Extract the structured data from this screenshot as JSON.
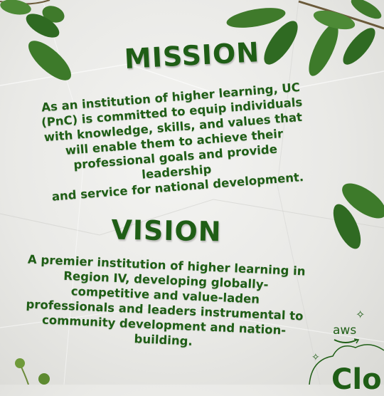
{
  "mission": {
    "title": "MISSION",
    "lines": [
      "As an institution of higher learning, UC",
      "(PnC) is committed to equip individuals",
      "with knowledge, skills, and values that",
      "will enable them to achieve their",
      "professional goals and provide leadership",
      "and service for national development."
    ]
  },
  "vision": {
    "title": "VISION",
    "lines": [
      "A premier institution of higher learning in",
      "Region IV, developing globally-",
      "competitive and value-laden",
      "professionals and leaders instrumental to",
      "community development and nation-",
      "building."
    ]
  },
  "badge": {
    "logo_text": "aws",
    "partial_text": "Clo"
  },
  "colors": {
    "text": "#1f5e16",
    "leaf": "#3f7a2b",
    "paper": "#ececea"
  },
  "icons": [
    "leaf-branch-icon",
    "aws-logo-icon",
    "sparkle-icon",
    "cloud-outline-icon",
    "berry-sprig-icon"
  ]
}
